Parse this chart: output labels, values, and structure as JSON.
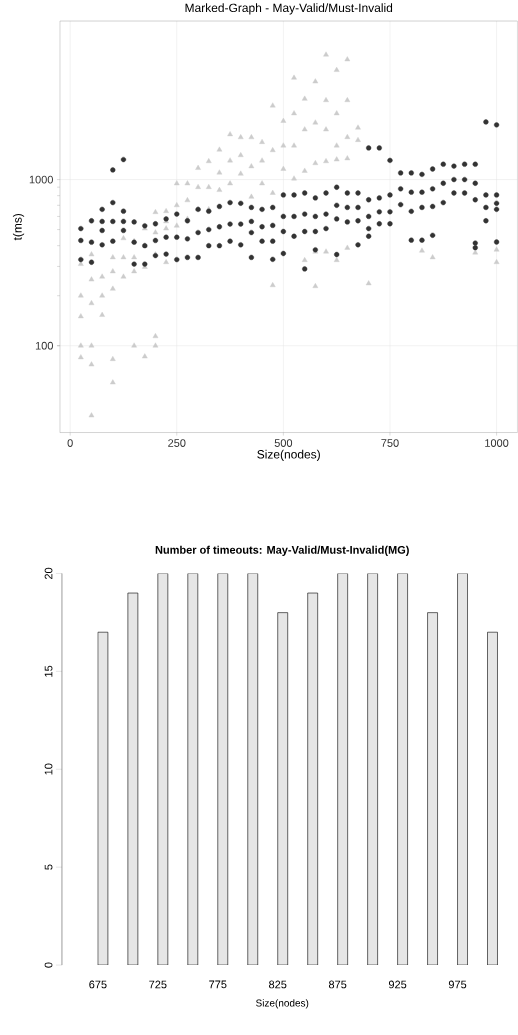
{
  "chart_data": [
    {
      "type": "scatter",
      "title": "Marked-Graph - May-Valid/Must-Invalid",
      "xlabel": "Size(nodes)",
      "ylabel": "t(ms)",
      "log": "y",
      "grid": true,
      "xlim": [
        -24,
        1049
      ],
      "xticks": [
        0,
        250,
        500,
        750,
        1000
      ],
      "ylim": [
        30,
        9000
      ],
      "yticks": [
        100,
        1000
      ],
      "series": [
        {
          "color": "#cccccc",
          "marker": "triangle",
          "x": [
            25,
            25,
            25,
            25,
            25,
            50,
            50,
            50,
            50,
            50,
            50,
            75,
            75,
            75,
            100,
            100,
            100,
            100,
            100,
            125,
            125,
            125,
            150,
            150,
            150,
            150,
            175,
            175,
            175,
            175,
            200,
            200,
            200,
            200,
            200,
            225,
            225,
            225,
            225,
            250,
            250,
            250,
            275,
            275,
            275,
            300,
            300,
            300,
            325,
            325,
            325,
            350,
            350,
            350,
            375,
            375,
            375,
            400,
            400,
            400,
            425,
            425,
            425,
            450,
            450,
            450,
            475,
            475,
            475,
            475,
            500,
            500,
            500,
            525,
            525,
            525,
            525,
            550,
            550,
            550,
            550,
            575,
            575,
            575,
            575,
            575,
            600,
            600,
            600,
            600,
            600,
            625,
            625,
            625,
            625,
            625,
            650,
            650,
            650,
            650,
            650,
            675,
            675,
            700,
            825,
            850,
            950,
            1000,
            1000
          ],
          "values": [
            310,
            200,
            150,
            100,
            85,
            354,
            250,
            180,
            100,
            77,
            38,
            260,
            200,
            153,
            340,
            280,
            220,
            83,
            60,
            443,
            340,
            260,
            426,
            340,
            280,
            100,
            507,
            400,
            298,
            86,
            636,
            480,
            354,
            114,
            100,
            645,
            560,
            507,
            318,
            947,
            700,
            527,
            947,
            750,
            580,
            1173,
            900,
            662,
            1288,
            900,
            662,
            1511,
            1100,
            864,
            1870,
            1300,
            947,
            1795,
            1400,
            1083,
            1795,
            1200,
            787,
            1680,
            1300,
            947,
            2785,
            1500,
            830,
            231,
            2251,
            1600,
            1158,
            4095,
            2500,
            1600,
            1013,
            3060,
            2000,
            1127,
            327,
            3890,
            2200,
            1254,
            368,
            228,
            5640,
            3000,
            2000,
            1288,
            368,
            4560,
            2500,
            1600,
            1320,
            327,
            5280,
            3000,
            1800,
            1340,
            388,
            2050,
            1727,
            237,
            373,
            340,
            363,
            378,
            318
          ]
        },
        {
          "color": "#333333",
          "marker": "circle",
          "x": [
            25,
            25,
            25,
            50,
            50,
            50,
            75,
            75,
            75,
            75,
            100,
            100,
            100,
            100,
            125,
            125,
            125,
            125,
            150,
            150,
            150,
            175,
            175,
            175,
            200,
            200,
            200,
            225,
            225,
            225,
            250,
            250,
            250,
            275,
            275,
            275,
            300,
            300,
            300,
            325,
            325,
            325,
            350,
            350,
            350,
            375,
            375,
            375,
            400,
            400,
            400,
            425,
            425,
            425,
            425,
            450,
            450,
            450,
            475,
            475,
            475,
            475,
            500,
            500,
            500,
            500,
            525,
            525,
            525,
            550,
            550,
            550,
            550,
            575,
            575,
            575,
            575,
            600,
            600,
            600,
            625,
            625,
            625,
            625,
            650,
            650,
            650,
            675,
            675,
            675,
            675,
            700,
            700,
            700,
            700,
            700,
            725,
            725,
            725,
            725,
            750,
            750,
            750,
            750,
            775,
            775,
            775,
            800,
            800,
            800,
            800,
            825,
            825,
            825,
            825,
            850,
            850,
            850,
            850,
            875,
            875,
            875,
            900,
            900,
            900,
            925,
            925,
            925,
            950,
            950,
            950,
            950,
            950,
            975,
            975,
            975,
            975,
            1000,
            1000,
            1000,
            1000,
            1000
          ],
          "values": [
            507,
            430,
            330,
            565,
            420,
            318,
            662,
            560,
            494,
            405,
            727,
            560,
            426,
            1143,
            645,
            560,
            494,
            1320,
            556,
            420,
            310,
            527,
            400,
            310,
            542,
            430,
            349,
            580,
            450,
            356,
            620,
            450,
            330,
            565,
            440,
            340,
            662,
            480,
            340,
            645,
            500,
            400,
            689,
            520,
            400,
            727,
            540,
            426,
            720,
            540,
            405,
            680,
            560,
            480,
            340,
            662,
            520,
            426,
            680,
            530,
            426,
            331,
            808,
            600,
            487,
            359,
            808,
            600,
            456,
            830,
            620,
            487,
            290,
            776,
            600,
            487,
            378,
            830,
            620,
            507,
            899,
            700,
            580,
            354,
            830,
            680,
            556,
            830,
            680,
            565,
            405,
            756,
            600,
            507,
            456,
            1551,
            776,
            640,
            542,
            1551,
            808,
            640,
            542,
            1305,
            1097,
            880,
            707,
            1097,
            840,
            644,
            432,
            1075,
            840,
            680,
            432,
            1158,
            880,
            689,
            462,
            1237,
            950,
            727,
            1205,
            1000,
            830,
            1237,
            1000,
            830,
            1237,
            950,
            756,
            415,
            389,
            808,
            680,
            565,
            2222,
            808,
            720,
            662,
            2134,
            421
          ]
        }
      ]
    },
    {
      "type": "bar",
      "title": "Number of timeouts: May-Valid/Must-Invalid(MG)",
      "xlabel": "Size(nodes)",
      "categories": [
        "675",
        null,
        "725",
        null,
        "775",
        null,
        "825",
        null,
        "875",
        null,
        "925",
        null,
        "975",
        null
      ],
      "ylim": [
        0,
        20
      ],
      "yticks": [
        0,
        5,
        10,
        15,
        20
      ],
      "series": [
        {
          "color": "#4d4d4d",
          "values": [
            0,
            0,
            0,
            0,
            0,
            0,
            0,
            0,
            0,
            0,
            0,
            0,
            0,
            0
          ]
        },
        {
          "color": "#e6e6e6",
          "values": [
            17,
            19,
            20,
            20,
            20,
            20,
            18,
            19,
            20,
            20,
            20,
            18,
            20,
            17
          ]
        }
      ]
    }
  ]
}
